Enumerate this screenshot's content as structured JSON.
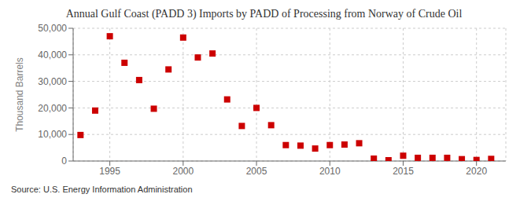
{
  "chart_data": {
    "type": "scatter",
    "title": "Annual Gulf Coast (PADD 3) Imports by PADD of Processing from Norway of Crude Oil",
    "y_label": "Thousand Barrels",
    "annotations": [
      "Source: U.S. Energy Information Administration"
    ],
    "x": [
      1993,
      1994,
      1995,
      1996,
      1997,
      1998,
      1999,
      2000,
      2001,
      2002,
      2003,
      2004,
      2005,
      2006,
      2007,
      2008,
      2009,
      2010,
      2011,
      2012,
      2013,
      2014,
      2015,
      2016,
      2017,
      2018,
      2019,
      2020,
      2021
    ],
    "values": [
      9800,
      19000,
      47000,
      37000,
      30500,
      19700,
      34500,
      46500,
      39000,
      40500,
      23200,
      13200,
      20000,
      13500,
      6000,
      5800,
      4700,
      6000,
      6200,
      6700,
      900,
      300,
      2000,
      1200,
      1200,
      1200,
      700,
      400,
      800
    ],
    "color": "#cc0000",
    "marker": "square",
    "xlim": [
      1992.5,
      2022
    ],
    "xticks": [
      1995,
      2000,
      2005,
      2010,
      2015,
      2020
    ],
    "ylim": [
      0,
      50000
    ],
    "yticks": [
      0,
      {
        "value": 10000,
        "label": "10,000"
      },
      {
        "value": 20000,
        "label": "20,000"
      },
      {
        "value": 30000,
        "label": "30,000"
      },
      {
        "value": 40000,
        "label": "40,000"
      },
      {
        "value": 50000,
        "label": "50,000"
      }
    ],
    "grid": true
  }
}
